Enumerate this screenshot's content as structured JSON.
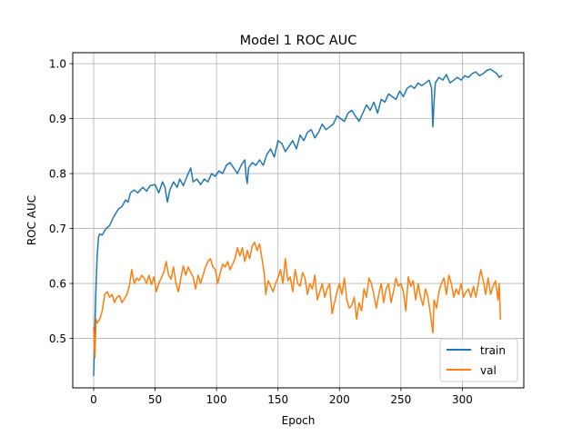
{
  "chart_data": {
    "type": "line",
    "title": "Model 1 ROC AUC",
    "xlabel": "Epoch",
    "ylabel": "ROC AUC",
    "xlim": [
      -17,
      350
    ],
    "ylim": [
      0.41,
      1.02
    ],
    "x_ticks": [
      0,
      50,
      100,
      150,
      200,
      250,
      300
    ],
    "y_ticks": [
      0.5,
      0.6,
      0.7,
      0.8,
      0.9,
      1.0
    ],
    "x_tick_labels": [
      "0",
      "50",
      "100",
      "150",
      "200",
      "250",
      "300"
    ],
    "y_tick_labels": [
      "0.5",
      "0.6",
      "0.7",
      "0.8",
      "0.9",
      "1.0"
    ],
    "grid": true,
    "legend_position": "lower-right",
    "series": [
      {
        "name": "train",
        "color": "#1f77b4",
        "points": [
          [
            0,
            0.433
          ],
          [
            1,
            0.52
          ],
          [
            2,
            0.6
          ],
          [
            3,
            0.655
          ],
          [
            4,
            0.685
          ],
          [
            5,
            0.69
          ],
          [
            7,
            0.688
          ],
          [
            10,
            0.7
          ],
          [
            13,
            0.705
          ],
          [
            16,
            0.72
          ],
          [
            20,
            0.735
          ],
          [
            23,
            0.74
          ],
          [
            26,
            0.752
          ],
          [
            28,
            0.748
          ],
          [
            30,
            0.765
          ],
          [
            33,
            0.77
          ],
          [
            36,
            0.765
          ],
          [
            40,
            0.775
          ],
          [
            43,
            0.768
          ],
          [
            46,
            0.778
          ],
          [
            50,
            0.78
          ],
          [
            53,
            0.765
          ],
          [
            56,
            0.785
          ],
          [
            58,
            0.775
          ],
          [
            60,
            0.748
          ],
          [
            62,
            0.77
          ],
          [
            65,
            0.785
          ],
          [
            68,
            0.775
          ],
          [
            70,
            0.79
          ],
          [
            73,
            0.778
          ],
          [
            76,
            0.795
          ],
          [
            79,
            0.81
          ],
          [
            81,
            0.785
          ],
          [
            84,
            0.79
          ],
          [
            87,
            0.78
          ],
          [
            90,
            0.79
          ],
          [
            93,
            0.785
          ],
          [
            96,
            0.8
          ],
          [
            99,
            0.795
          ],
          [
            102,
            0.805
          ],
          [
            105,
            0.8
          ],
          [
            108,
            0.815
          ],
          [
            111,
            0.82
          ],
          [
            114,
            0.81
          ],
          [
            117,
            0.8
          ],
          [
            120,
            0.815
          ],
          [
            123,
            0.825
          ],
          [
            124,
            0.795
          ],
          [
            125,
            0.782
          ],
          [
            126,
            0.81
          ],
          [
            129,
            0.82
          ],
          [
            132,
            0.815
          ],
          [
            135,
            0.825
          ],
          [
            138,
            0.815
          ],
          [
            141,
            0.835
          ],
          [
            144,
            0.845
          ],
          [
            147,
            0.83
          ],
          [
            150,
            0.86
          ],
          [
            153,
            0.855
          ],
          [
            156,
            0.84
          ],
          [
            159,
            0.85
          ],
          [
            162,
            0.86
          ],
          [
            165,
            0.845
          ],
          [
            168,
            0.87
          ],
          [
            171,
            0.86
          ],
          [
            174,
            0.875
          ],
          [
            177,
            0.88
          ],
          [
            180,
            0.865
          ],
          [
            183,
            0.875
          ],
          [
            186,
            0.89
          ],
          [
            189,
            0.88
          ],
          [
            192,
            0.885
          ],
          [
            195,
            0.89
          ],
          [
            198,
            0.905
          ],
          [
            201,
            0.9
          ],
          [
            204,
            0.895
          ],
          [
            207,
            0.91
          ],
          [
            210,
            0.915
          ],
          [
            213,
            0.905
          ],
          [
            216,
            0.895
          ],
          [
            219,
            0.91
          ],
          [
            222,
            0.925
          ],
          [
            225,
            0.915
          ],
          [
            228,
            0.93
          ],
          [
            231,
            0.91
          ],
          [
            234,
            0.935
          ],
          [
            237,
            0.93
          ],
          [
            240,
            0.945
          ],
          [
            243,
            0.94
          ],
          [
            246,
            0.935
          ],
          [
            249,
            0.95
          ],
          [
            252,
            0.94
          ],
          [
            255,
            0.955
          ],
          [
            258,
            0.96
          ],
          [
            261,
            0.955
          ],
          [
            264,
            0.965
          ],
          [
            267,
            0.96
          ],
          [
            270,
            0.965
          ],
          [
            273,
            0.97
          ],
          [
            275,
            0.955
          ],
          [
            276,
            0.885
          ],
          [
            277,
            0.93
          ],
          [
            278,
            0.965
          ],
          [
            281,
            0.975
          ],
          [
            284,
            0.97
          ],
          [
            287,
            0.98
          ],
          [
            290,
            0.965
          ],
          [
            293,
            0.97
          ],
          [
            296,
            0.975
          ],
          [
            299,
            0.97
          ],
          [
            302,
            0.978
          ],
          [
            305,
            0.975
          ],
          [
            308,
            0.982
          ],
          [
            311,
            0.985
          ],
          [
            314,
            0.978
          ],
          [
            317,
            0.982
          ],
          [
            320,
            0.988
          ],
          [
            323,
            0.99
          ],
          [
            326,
            0.985
          ],
          [
            328,
            0.982
          ],
          [
            330,
            0.975
          ],
          [
            332,
            0.978
          ]
        ]
      },
      {
        "name": "val",
        "color": "#ff7f0e",
        "points": [
          [
            0,
            0.52
          ],
          [
            1,
            0.465
          ],
          [
            2,
            0.535
          ],
          [
            3,
            0.528
          ],
          [
            5,
            0.535
          ],
          [
            7,
            0.55
          ],
          [
            9,
            0.58
          ],
          [
            11,
            0.585
          ],
          [
            13,
            0.575
          ],
          [
            15,
            0.58
          ],
          [
            17,
            0.565
          ],
          [
            19,
            0.575
          ],
          [
            21,
            0.578
          ],
          [
            23,
            0.565
          ],
          [
            25,
            0.572
          ],
          [
            27,
            0.58
          ],
          [
            29,
            0.595
          ],
          [
            31,
            0.625
          ],
          [
            33,
            0.6
          ],
          [
            35,
            0.61
          ],
          [
            37,
            0.605
          ],
          [
            39,
            0.615
          ],
          [
            41,
            0.61
          ],
          [
            43,
            0.6
          ],
          [
            45,
            0.615
          ],
          [
            47,
            0.598
          ],
          [
            49,
            0.612
          ],
          [
            51,
            0.585
          ],
          [
            53,
            0.6
          ],
          [
            55,
            0.61
          ],
          [
            57,
            0.62
          ],
          [
            59,
            0.64
          ],
          [
            61,
            0.615
          ],
          [
            63,
            0.608
          ],
          [
            65,
            0.63
          ],
          [
            67,
            0.6
          ],
          [
            69,
            0.585
          ],
          [
            71,
            0.61
          ],
          [
            73,
            0.632
          ],
          [
            75,
            0.615
          ],
          [
            77,
            0.63
          ],
          [
            79,
            0.62
          ],
          [
            81,
            0.612
          ],
          [
            83,
            0.59
          ],
          [
            85,
            0.615
          ],
          [
            87,
            0.6
          ],
          [
            89,
            0.615
          ],
          [
            91,
            0.63
          ],
          [
            93,
            0.64
          ],
          [
            95,
            0.645
          ],
          [
            97,
            0.63
          ],
          [
            99,
            0.625
          ],
          [
            101,
            0.6
          ],
          [
            103,
            0.62
          ],
          [
            105,
            0.635
          ],
          [
            107,
            0.63
          ],
          [
            109,
            0.64
          ],
          [
            111,
            0.625
          ],
          [
            113,
            0.635
          ],
          [
            115,
            0.645
          ],
          [
            117,
            0.665
          ],
          [
            119,
            0.65
          ],
          [
            121,
            0.665
          ],
          [
            123,
            0.64
          ],
          [
            125,
            0.66
          ],
          [
            127,
            0.645
          ],
          [
            129,
            0.668
          ],
          [
            131,
            0.675
          ],
          [
            133,
            0.66
          ],
          [
            135,
            0.672
          ],
          [
            137,
            0.645
          ],
          [
            139,
            0.615
          ],
          [
            140,
            0.58
          ],
          [
            142,
            0.605
          ],
          [
            144,
            0.595
          ],
          [
            146,
            0.585
          ],
          [
            148,
            0.6
          ],
          [
            150,
            0.61
          ],
          [
            152,
            0.625
          ],
          [
            154,
            0.6
          ],
          [
            156,
            0.645
          ],
          [
            158,
            0.605
          ],
          [
            160,
            0.612
          ],
          [
            162,
            0.585
          ],
          [
            164,
            0.625
          ],
          [
            166,
            0.6
          ],
          [
            168,
            0.595
          ],
          [
            170,
            0.62
          ],
          [
            172,
            0.61
          ],
          [
            174,
            0.58
          ],
          [
            176,
            0.6
          ],
          [
            178,
            0.59
          ],
          [
            180,
            0.615
          ],
          [
            182,
            0.57
          ],
          [
            184,
            0.585
          ],
          [
            186,
            0.6
          ],
          [
            188,
            0.575
          ],
          [
            190,
            0.59
          ],
          [
            192,
            0.6
          ],
          [
            194,
            0.545
          ],
          [
            196,
            0.565
          ],
          [
            198,
            0.585
          ],
          [
            200,
            0.6
          ],
          [
            202,
            0.58
          ],
          [
            204,
            0.61
          ],
          [
            206,
            0.57
          ],
          [
            208,
            0.555
          ],
          [
            210,
            0.56
          ],
          [
            212,
            0.575
          ],
          [
            214,
            0.535
          ],
          [
            216,
            0.565
          ],
          [
            218,
            0.55
          ],
          [
            220,
            0.59
          ],
          [
            222,
            0.575
          ],
          [
            224,
            0.61
          ],
          [
            226,
            0.6
          ],
          [
            228,
            0.58
          ],
          [
            230,
            0.555
          ],
          [
            232,
            0.58
          ],
          [
            234,
            0.6
          ],
          [
            236,
            0.565
          ],
          [
            238,
            0.59
          ],
          [
            240,
            0.6
          ],
          [
            242,
            0.565
          ],
          [
            244,
            0.585
          ],
          [
            246,
            0.61
          ],
          [
            248,
            0.595
          ],
          [
            250,
            0.6
          ],
          [
            252,
            0.585
          ],
          [
            254,
            0.55
          ],
          [
            256,
            0.612
          ],
          [
            258,
            0.595
          ],
          [
            260,
            0.605
          ],
          [
            262,
            0.57
          ],
          [
            264,
            0.6
          ],
          [
            266,
            0.575
          ],
          [
            268,
            0.56
          ],
          [
            270,
            0.59
          ],
          [
            272,
            0.575
          ],
          [
            274,
            0.545
          ],
          [
            276,
            0.51
          ],
          [
            277,
            0.57
          ],
          [
            279,
            0.555
          ],
          [
            281,
            0.585
          ],
          [
            283,
            0.6
          ],
          [
            285,
            0.61
          ],
          [
            287,
            0.58
          ],
          [
            289,
            0.615
          ],
          [
            291,
            0.6
          ],
          [
            293,
            0.575
          ],
          [
            295,
            0.59
          ],
          [
            297,
            0.58
          ],
          [
            299,
            0.6
          ],
          [
            301,
            0.575
          ],
          [
            303,
            0.585
          ],
          [
            305,
            0.59
          ],
          [
            307,
            0.575
          ],
          [
            309,
            0.595
          ],
          [
            311,
            0.575
          ],
          [
            313,
            0.6
          ],
          [
            315,
            0.625
          ],
          [
            317,
            0.605
          ],
          [
            319,
            0.58
          ],
          [
            321,
            0.61
          ],
          [
            323,
            0.58
          ],
          [
            325,
            0.595
          ],
          [
            327,
            0.605
          ],
          [
            329,
            0.57
          ],
          [
            330,
            0.6
          ],
          [
            331,
            0.535
          ]
        ]
      }
    ]
  }
}
